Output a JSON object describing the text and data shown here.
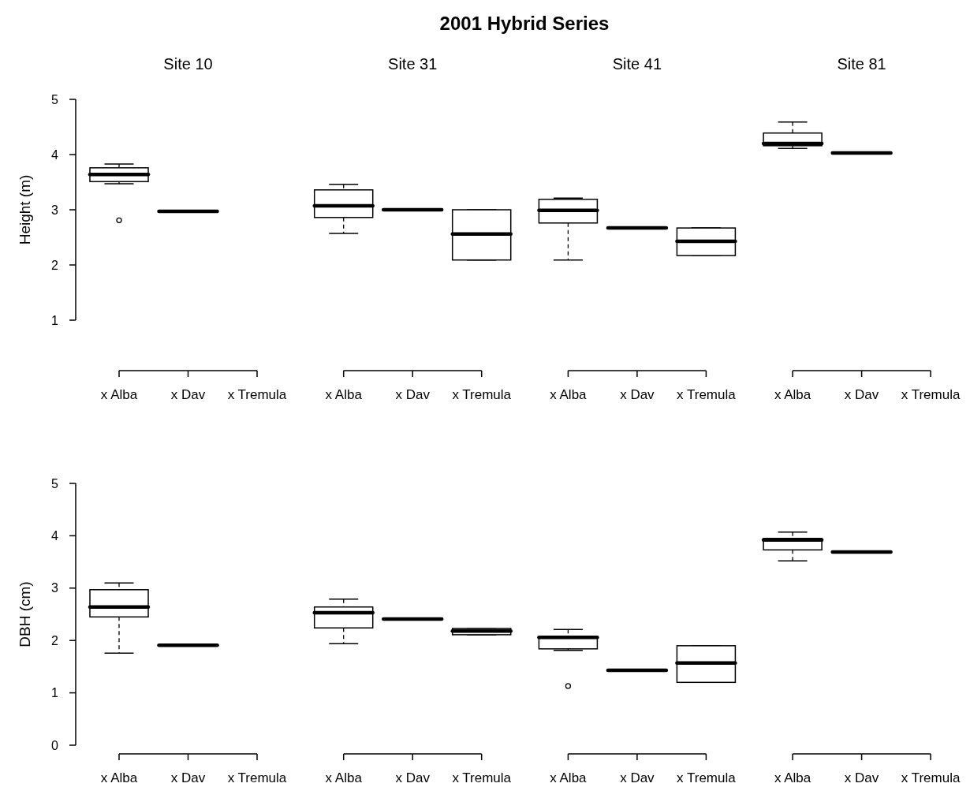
{
  "chart_data": [
    {
      "type": "box",
      "title": "Site 10",
      "ylabel": "Height (m)",
      "categories": [
        "x Alba",
        "x Dav",
        "x Tremula"
      ],
      "ylim": [
        1,
        5
      ],
      "yticks": [
        1,
        2,
        3,
        4,
        5
      ],
      "boxes": [
        {
          "low": 3.47,
          "q1": 3.51,
          "median": 3.64,
          "q3": 3.76,
          "high": 3.83,
          "outliers": [
            2.81
          ]
        },
        {
          "low": 2.97,
          "q1": 2.97,
          "median": 2.97,
          "q3": 2.97,
          "high": 2.97
        },
        null
      ]
    },
    {
      "type": "box",
      "title": "Site 31",
      "categories": [
        "x Alba",
        "x Dav",
        "x Tremula"
      ],
      "ylim": [
        1,
        5
      ],
      "tick_labels": "x",
      "boxes": [
        {
          "low": 2.57,
          "q1": 2.86,
          "median": 3.07,
          "q3": 3.36,
          "high": 3.46
        },
        {
          "low": 3.0,
          "q1": 3.0,
          "median": 3.0,
          "q3": 3.0,
          "high": 3.0
        },
        {
          "low": 2.09,
          "q1": 2.09,
          "median": 2.56,
          "q3": 3.0,
          "high": 3.0
        }
      ]
    },
    {
      "type": "box",
      "title": "Site 41",
      "categories": [
        "x Alba",
        "x Dav",
        "x Tremula"
      ],
      "ylim": [
        1,
        5
      ],
      "tick_labels": "x",
      "boxes": [
        {
          "low": 2.09,
          "q1": 2.76,
          "median": 2.99,
          "q3": 3.19,
          "high": 3.21
        },
        {
          "low": 2.67,
          "q1": 2.67,
          "median": 2.67,
          "q3": 2.67,
          "high": 2.67
        },
        {
          "low": 2.17,
          "q1": 2.17,
          "median": 2.43,
          "q3": 2.67,
          "high": 2.67
        }
      ]
    },
    {
      "type": "box",
      "title": "Site 81",
      "categories": [
        "x Alba",
        "x Dav",
        "x Tremula"
      ],
      "ylim": [
        1,
        5
      ],
      "tick_labels": "x",
      "boxes": [
        {
          "low": 4.11,
          "q1": 4.16,
          "median": 4.2,
          "q3": 4.39,
          "high": 4.59
        },
        {
          "low": 4.03,
          "q1": 4.03,
          "median": 4.03,
          "q3": 4.03,
          "high": 4.03
        },
        null
      ]
    },
    {
      "type": "box",
      "ylabel": "DBH (cm)",
      "categories": [
        "x Alba",
        "x Dav",
        "x Tremula"
      ],
      "ylim": [
        0,
        5
      ],
      "yticks": [
        0,
        1,
        2,
        3,
        4,
        5
      ],
      "boxes": [
        {
          "low": 1.76,
          "q1": 2.45,
          "median": 2.64,
          "q3": 2.97,
          "high": 3.1
        },
        {
          "low": 1.91,
          "q1": 1.91,
          "median": 1.91,
          "q3": 1.91,
          "high": 1.91
        },
        null
      ]
    },
    {
      "type": "box",
      "categories": [
        "x Alba",
        "x Dav",
        "x Tremula"
      ],
      "ylim": [
        0,
        5
      ],
      "tick_labels": "x",
      "boxes": [
        {
          "low": 1.94,
          "q1": 2.24,
          "median": 2.53,
          "q3": 2.64,
          "high": 2.79
        },
        {
          "low": 2.41,
          "q1": 2.41,
          "median": 2.41,
          "q3": 2.41,
          "high": 2.41
        },
        {
          "low": 2.11,
          "q1": 2.11,
          "median": 2.18,
          "q3": 2.23,
          "high": 2.23
        }
      ]
    },
    {
      "type": "box",
      "categories": [
        "x Alba",
        "x Dav",
        "x Tremula"
      ],
      "ylim": [
        0,
        5
      ],
      "tick_labels": "x",
      "boxes": [
        {
          "low": 1.81,
          "q1": 1.84,
          "median": 2.06,
          "q3": 2.06,
          "high": 2.21,
          "outliers": [
            1.13
          ]
        },
        {
          "low": 1.43,
          "q1": 1.43,
          "median": 1.43,
          "q3": 1.43,
          "high": 1.43
        },
        {
          "low": 1.2,
          "q1": 1.2,
          "median": 1.57,
          "q3": 1.9,
          "high": 1.9
        }
      ]
    },
    {
      "type": "box",
      "categories": [
        "x Alba",
        "x Dav",
        "x Tremula"
      ],
      "ylim": [
        0,
        5
      ],
      "tick_labels": "x",
      "boxes": [
        {
          "low": 3.52,
          "q1": 3.73,
          "median": 3.92,
          "q3": 3.95,
          "high": 4.07
        },
        {
          "low": 3.69,
          "q1": 3.69,
          "median": 3.69,
          "q3": 3.69,
          "high": 3.69
        },
        null
      ]
    },
    {
      "type": "other",
      "title": "2001 Hybrid Series"
    }
  ]
}
